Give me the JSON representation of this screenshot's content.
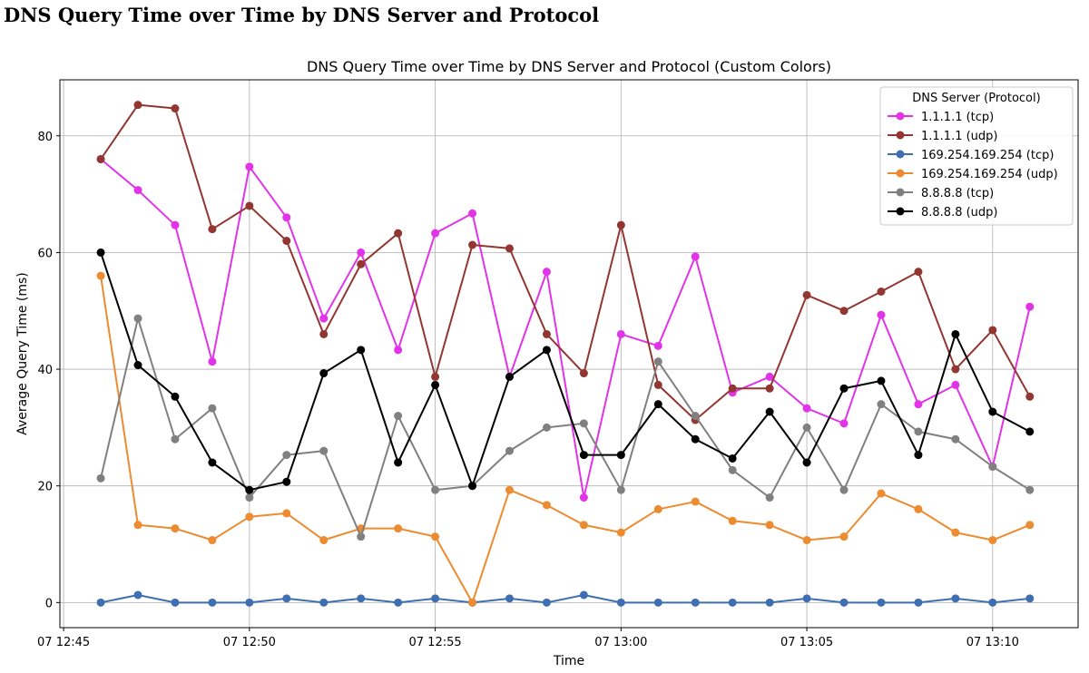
{
  "page": {
    "heading": "DNS Query Time over Time by DNS Server and Protocol"
  },
  "chart_data": {
    "type": "line",
    "title": "DNS Query Time over Time by DNS Server and Protocol (Custom Colors)",
    "xlabel": "Time",
    "ylabel": "Average Query Time (ms)",
    "x_tick_labels": [
      "07 12:45",
      "07 12:50",
      "07 12:55",
      "07 13:00",
      "07 13:05",
      "07 13:10"
    ],
    "x_tick_times": [
      "12:45",
      "12:50",
      "12:55",
      "13:00",
      "13:05",
      "13:10"
    ],
    "y_ticks": [
      0,
      20,
      40,
      60,
      80
    ],
    "xlim": [
      "12:44.9",
      "13:12.3"
    ],
    "ylim": [
      -4.3,
      89.6
    ],
    "grid": true,
    "legend": {
      "title": "DNS Server (Protocol)",
      "position": "top-right"
    },
    "x": [
      "12:46",
      "12:47",
      "12:48",
      "12:49",
      "12:50",
      "12:51",
      "12:52",
      "12:53",
      "12:54",
      "12:55",
      "12:56",
      "12:57",
      "12:58",
      "12:59",
      "13:00",
      "13:01",
      "13:02",
      "13:03",
      "13:04",
      "13:05",
      "13:06",
      "13:07",
      "13:08",
      "13:09",
      "13:10",
      "13:11"
    ],
    "series": [
      {
        "name": "1.1.1.1 (tcp)",
        "color": "#e233e9",
        "values": [
          76,
          70.7,
          64.7,
          41.3,
          74.7,
          66,
          48.7,
          60,
          43.3,
          63.3,
          66.7,
          38.7,
          56.7,
          18,
          46,
          44,
          59.3,
          36,
          38.7,
          33.3,
          30.7,
          49.3,
          34,
          37.3,
          23.3,
          50.7
        ]
      },
      {
        "name": "1.1.1.1 (udp)",
        "color": "#923631",
        "values": [
          76,
          85.3,
          84.7,
          64,
          68,
          62,
          46,
          58,
          63.3,
          38.7,
          61.3,
          60.7,
          46,
          39.3,
          64.7,
          37.3,
          31.3,
          36.7,
          36.7,
          52.7,
          50,
          53.3,
          56.7,
          40,
          46.7,
          35.3
        ]
      },
      {
        "name": "169.254.169.254 (tcp)",
        "color": "#3f6fb0",
        "values": [
          0,
          1.3,
          0,
          0,
          0,
          0.7,
          0,
          0.7,
          0,
          0.7,
          0,
          0.7,
          0,
          1.3,
          0,
          0,
          0,
          0,
          0,
          0.7,
          0,
          0,
          0,
          0.7,
          0,
          0.7
        ]
      },
      {
        "name": "169.254.169.254 (udp)",
        "color": "#ec8b2f",
        "values": [
          56,
          13.3,
          12.7,
          10.7,
          14.7,
          15.3,
          10.7,
          12.7,
          12.7,
          11.3,
          0,
          19.3,
          16.7,
          13.3,
          12,
          16,
          17.3,
          14,
          13.3,
          10.7,
          11.3,
          18.7,
          16,
          12,
          10.7,
          13.3
        ]
      },
      {
        "name": "8.8.8.8 (tcp)",
        "color": "#808080",
        "values": [
          21.3,
          48.7,
          28,
          33.3,
          18,
          25.3,
          26,
          11.3,
          32,
          19.3,
          20,
          26,
          30,
          30.7,
          19.3,
          41.3,
          32,
          22.7,
          18,
          30,
          19.3,
          34,
          29.3,
          28,
          23.3,
          19.3
        ]
      },
      {
        "name": "8.8.8.8 (udp)",
        "color": "#000000",
        "values": [
          60,
          40.7,
          35.3,
          24,
          19.3,
          20.7,
          39.3,
          43.3,
          24,
          37.3,
          20,
          38.7,
          43.3,
          25.3,
          25.3,
          34,
          28,
          24.7,
          32.7,
          24,
          36.7,
          38,
          25.3,
          46,
          32.7,
          29.3
        ]
      }
    ]
  }
}
